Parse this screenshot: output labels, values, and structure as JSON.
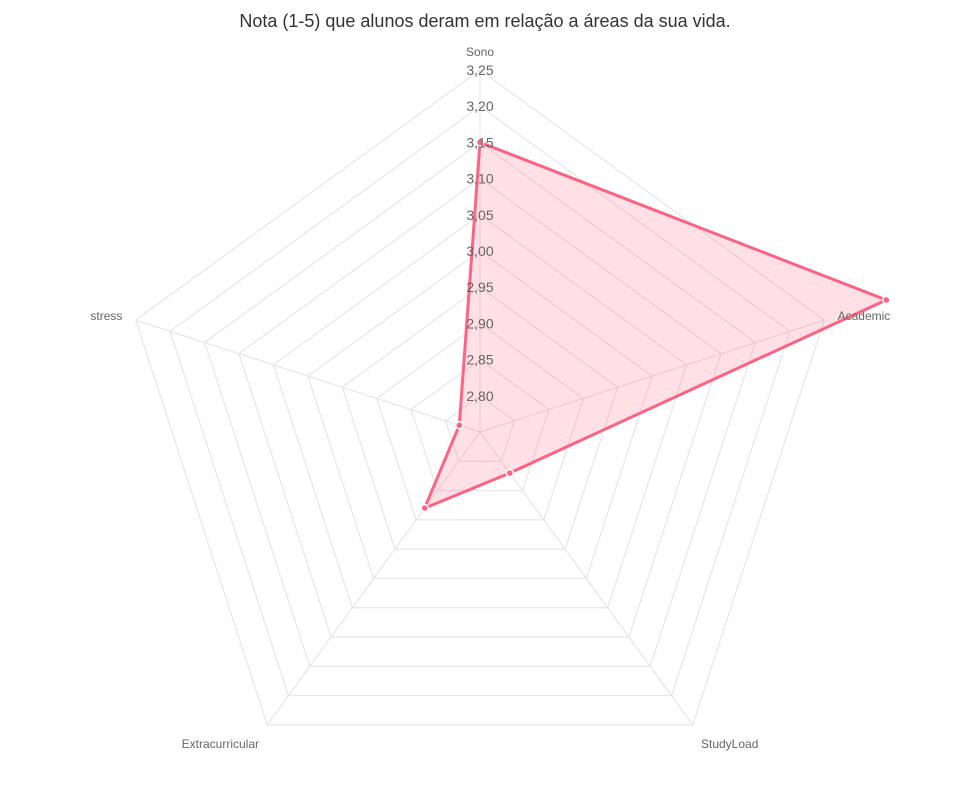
{
  "title": "Nota (1-5) que alunos deram em relação a áreas da sua vida.",
  "chart_data": {
    "type": "radar",
    "title": "Nota (1-5) que alunos deram em relação a áreas da sua vida.",
    "categories": [
      "Sono",
      "Academic",
      "StudyLoad",
      "Extracurricular",
      "stress"
    ],
    "series": [
      {
        "values": [
          3.15,
          3.34,
          2.82,
          2.88,
          2.78
        ]
      }
    ],
    "rlim": [
      2.75,
      3.25
    ],
    "ticks": [
      2.8,
      2.85,
      2.9,
      2.95,
      3.0,
      3.05,
      3.1,
      3.15,
      3.2,
      3.25
    ],
    "tick_labels": [
      "2,80",
      "2,85",
      "2,90",
      "2,95",
      "3,00",
      "3,05",
      "3,10",
      "3,15",
      "3,20",
      "3,25"
    ],
    "grid": true,
    "colors": {
      "line": "#ff6384",
      "fill": "rgba(255, 99, 132, 0.2)",
      "grid": "#e2e2e2"
    }
  }
}
